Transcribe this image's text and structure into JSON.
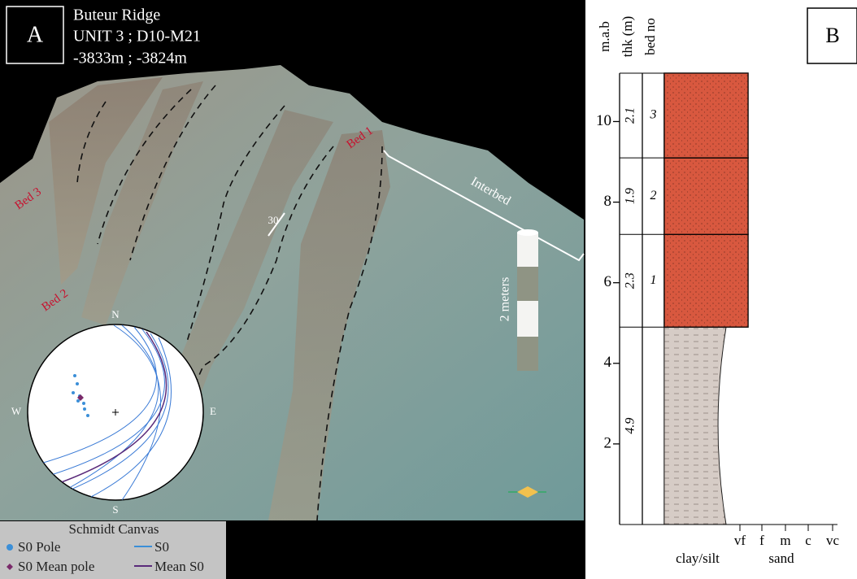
{
  "panel_a": {
    "label": "A",
    "title_lines": [
      "Buteur Ridge",
      "UNIT 3 ; D10-M21",
      "-3833m ; -3824m"
    ],
    "annotations": {
      "bed3": "Bed 3",
      "bed2": "Bed 2",
      "bed1": "Bed 1",
      "interbed": "Interbed",
      "angle": "30",
      "scale": "2 meters"
    },
    "stereonet": {
      "north": "N",
      "south": "S",
      "east": "E",
      "west": "W"
    },
    "legend": {
      "title": "Schmidt Canvas",
      "items": [
        "S0 Pole",
        "S0",
        "S0 Mean pole",
        "Mean S0"
      ]
    }
  },
  "chart_data": {
    "type": "strat-log",
    "label": "B",
    "column_headers": [
      "m.a.b",
      "thk (m)",
      "bed no"
    ],
    "ylim": [
      0,
      11.2
    ],
    "yticks": [
      2,
      4,
      6,
      8,
      10
    ],
    "grain_sizes": [
      "clay/silt",
      "vf",
      "f",
      "m",
      "c",
      "vc"
    ],
    "grain_group": "sand",
    "beds": {
      "thickness": [
        4.9,
        2.3,
        1.9,
        2.1
      ],
      "bed_no": [
        null,
        "1",
        "2",
        "3"
      ],
      "grain": [
        "clay/silt",
        "vf",
        "vf",
        "vf"
      ],
      "colors": [
        "#d6ccc6",
        "#d9583f",
        "#d9583f",
        "#d9583f"
      ]
    }
  }
}
